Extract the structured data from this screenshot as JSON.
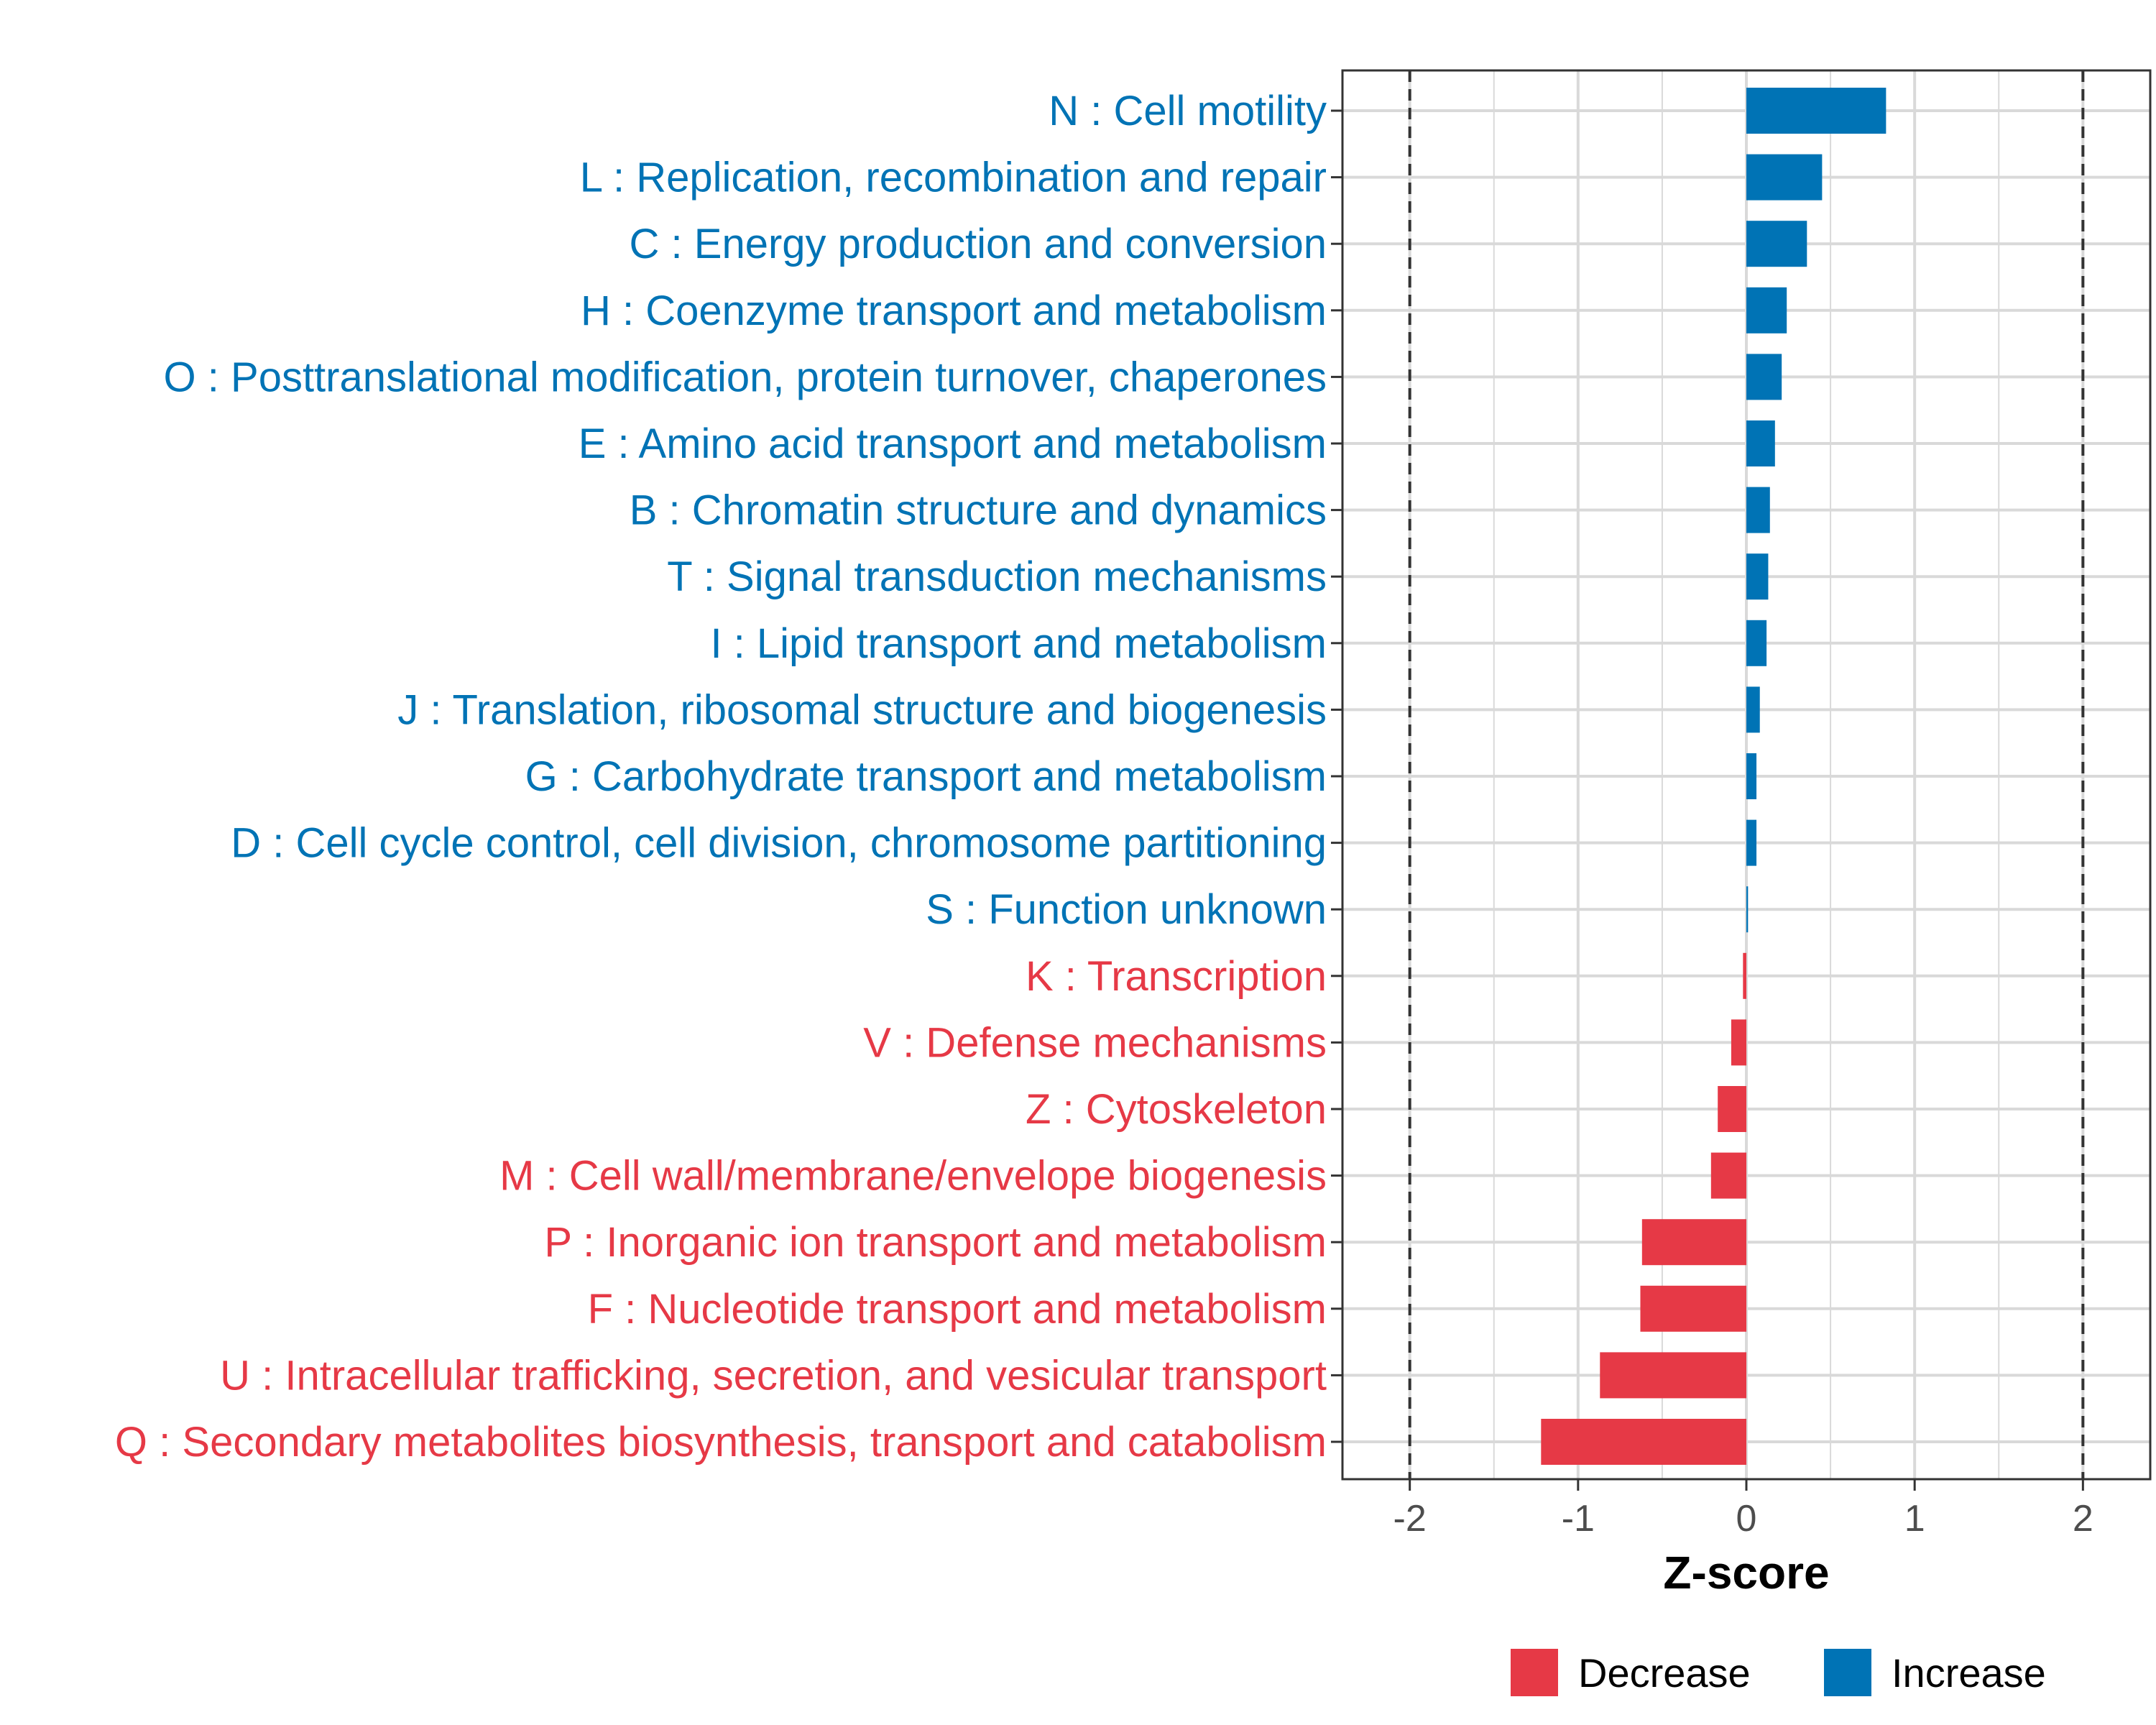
{
  "colors": {
    "increase": "#0073b5",
    "decrease": "#e63946",
    "grid": "#d9d9d9",
    "panel_border": "#333333",
    "threshold_line": "#333333",
    "tick_text": "#4d4d4d"
  },
  "chart_data": {
    "type": "bar",
    "orientation": "horizontal",
    "title": "",
    "xlabel": "Z-score",
    "ylabel": "",
    "xlim": [
      -2.4,
      2.4
    ],
    "x_ticks": [
      -2,
      -1,
      0,
      1,
      2
    ],
    "x_tick_labels": [
      "-2",
      "-1",
      "0",
      "1",
      "2"
    ],
    "threshold_lines": [
      -2,
      2
    ],
    "grid": true,
    "legend_position": "bottom",
    "legend": [
      {
        "label": "Decrease",
        "color": "#e63946"
      },
      {
        "label": "Increase",
        "color": "#0073b5"
      }
    ],
    "categories": [
      {
        "label": "N : Cell motility",
        "value": 0.83,
        "direction": "increase"
      },
      {
        "label": "L : Replication, recombination and repair",
        "value": 0.45,
        "direction": "increase"
      },
      {
        "label": "C : Energy production and conversion",
        "value": 0.36,
        "direction": "increase"
      },
      {
        "label": "H : Coenzyme transport and metabolism",
        "value": 0.24,
        "direction": "increase"
      },
      {
        "label": "O : Posttranslational modification, protein turnover, chaperones",
        "value": 0.21,
        "direction": "increase"
      },
      {
        "label": "E : Amino acid transport and metabolism",
        "value": 0.17,
        "direction": "increase"
      },
      {
        "label": "B : Chromatin structure and dynamics",
        "value": 0.14,
        "direction": "increase"
      },
      {
        "label": "T : Signal transduction mechanisms",
        "value": 0.13,
        "direction": "increase"
      },
      {
        "label": "I : Lipid transport and metabolism",
        "value": 0.12,
        "direction": "increase"
      },
      {
        "label": "J : Translation, ribosomal structure and biogenesis",
        "value": 0.08,
        "direction": "increase"
      },
      {
        "label": "G : Carbohydrate transport and metabolism",
        "value": 0.06,
        "direction": "increase"
      },
      {
        "label": "D : Cell cycle control, cell division, chromosome partitioning",
        "value": 0.06,
        "direction": "increase"
      },
      {
        "label": "S : Function unknown",
        "value": 0.01,
        "direction": "increase"
      },
      {
        "label": "K : Transcription",
        "value": -0.02,
        "direction": "decrease"
      },
      {
        "label": "V : Defense mechanisms",
        "value": -0.09,
        "direction": "decrease"
      },
      {
        "label": "Z : Cytoskeleton",
        "value": -0.17,
        "direction": "decrease"
      },
      {
        "label": "M : Cell wall/membrane/envelope biogenesis",
        "value": -0.21,
        "direction": "decrease"
      },
      {
        "label": "P : Inorganic ion transport and metabolism",
        "value": -0.62,
        "direction": "decrease"
      },
      {
        "label": "F : Nucleotide transport and metabolism",
        "value": -0.63,
        "direction": "decrease"
      },
      {
        "label": "U : Intracellular trafficking, secretion, and vesicular transport",
        "value": -0.87,
        "direction": "decrease"
      },
      {
        "label": "Q : Secondary metabolites biosynthesis, transport and catabolism",
        "value": -1.22,
        "direction": "decrease"
      }
    ]
  }
}
